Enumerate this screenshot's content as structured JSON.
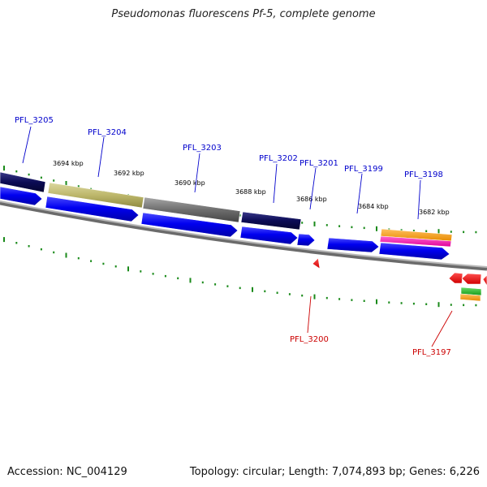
{
  "title": "Pseudomonas fluorescens Pf-5, complete genome",
  "footer": {
    "accession": "Accession: NC_004129",
    "summary": "Topology: circular; Length: 7,074,893 bp; Genes: 6,226"
  },
  "colors": {
    "forward_label": "#0000cc",
    "reverse_label": "#cc0000",
    "tick": "#1a8a1a",
    "backbone": "#808080"
  },
  "scale_labels": [
    "3694 kbp",
    "3692 kbp",
    "3690 kbp",
    "3688 kbp",
    "3686 kbp",
    "3684 kbp",
    "3682 kbp"
  ],
  "gene_labels": {
    "forward": [
      "PFL_3205",
      "PFL_3204",
      "PFL_3203",
      "PFL_3202",
      "PFL_3201",
      "PFL_3199",
      "PFL_3198"
    ],
    "reverse": [
      "PFL_3200",
      "PFL_3197"
    ]
  }
}
